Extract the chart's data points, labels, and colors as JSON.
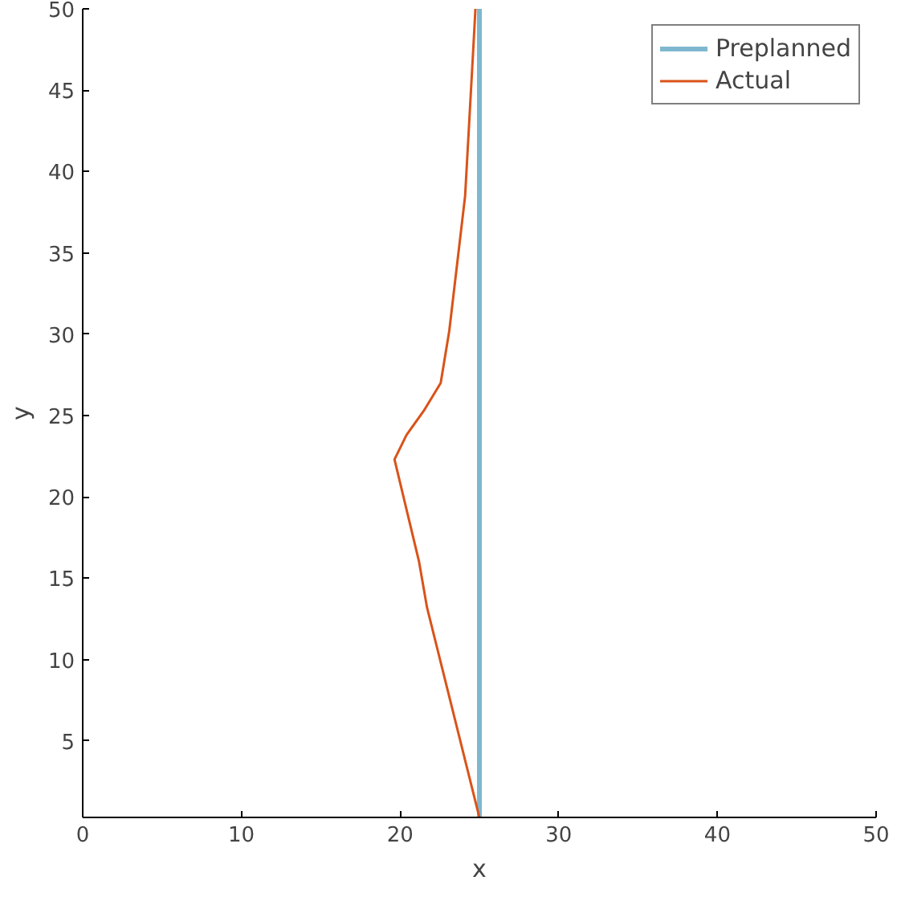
{
  "chart_data": {
    "type": "line",
    "xlabel": "x",
    "ylabel": "y",
    "xlim": [
      0,
      50
    ],
    "ylim": [
      0.3,
      50
    ],
    "xticks": [
      0,
      10,
      20,
      30,
      40,
      50
    ],
    "yticks": [
      5,
      10,
      15,
      20,
      25,
      30,
      35,
      40,
      45,
      50
    ],
    "grid": false,
    "legend": "top right",
    "series": [
      {
        "name": "Preplanned",
        "color": "#7fb7cf",
        "x": [
          25,
          25
        ],
        "values": [
          0.3,
          50
        ]
      },
      {
        "name": "Actual",
        "color": "#d95319",
        "x": [
          25.0,
          21.7,
          21.2,
          19.65,
          20.4,
          21.5,
          22.56,
          23.1,
          24.1,
          24.6,
          24.75
        ],
        "values": [
          0.3,
          13.2,
          16.0,
          22.3,
          23.8,
          25.3,
          27.0,
          30.2,
          38.5,
          47.3,
          50
        ]
      }
    ]
  }
}
